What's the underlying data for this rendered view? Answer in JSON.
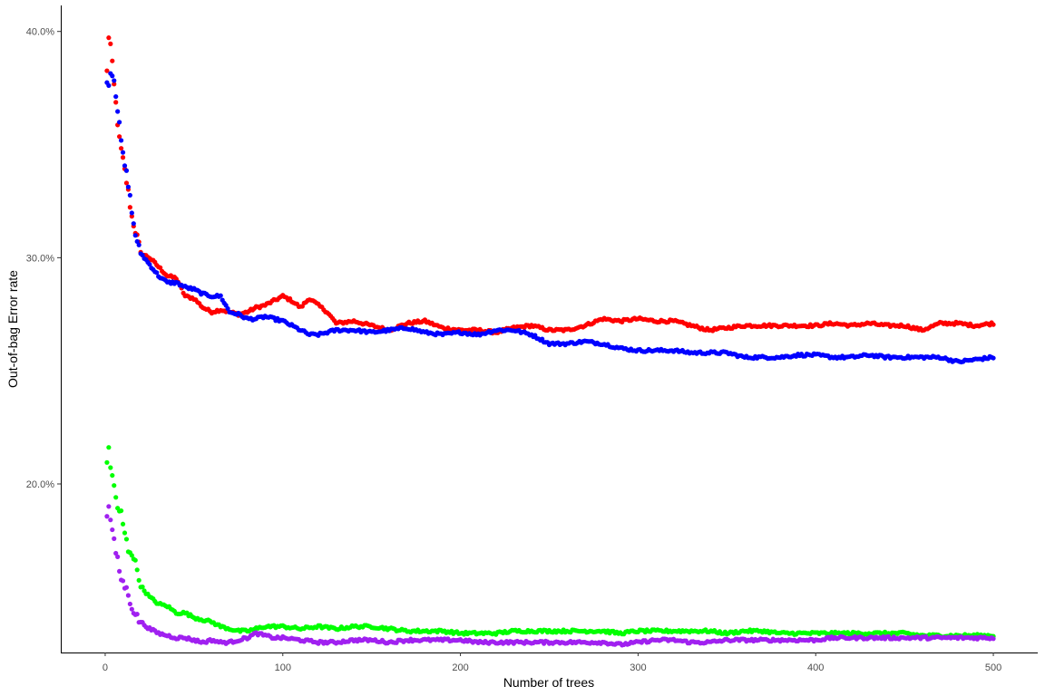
{
  "chart_data": {
    "type": "scatter",
    "title": "",
    "xlabel": "Number of trees",
    "ylabel": "Out-of-bag Error rate",
    "xlim": [
      -25,
      525
    ],
    "ylim": [
      0.1255,
      0.4115
    ],
    "x_ticks": [
      0,
      100,
      200,
      300,
      400,
      500
    ],
    "x_tick_labels": [
      "0",
      "100",
      "200",
      "300",
      "400",
      "500"
    ],
    "y_ticks": [
      0.2,
      0.3,
      0.4
    ],
    "y_tick_labels": [
      "20.0%",
      "30.0%",
      "40.0%"
    ],
    "grid": false,
    "legend": "none",
    "series": [
      {
        "color": "#ff0000",
        "x": [
          1,
          2,
          3,
          5,
          8,
          10,
          13,
          15,
          18,
          20,
          25,
          30,
          35,
          40,
          45,
          50,
          55,
          60,
          65,
          70,
          75,
          80,
          85,
          90,
          95,
          100,
          105,
          110,
          115,
          120,
          125,
          130,
          140,
          150,
          160,
          170,
          180,
          190,
          200,
          210,
          220,
          230,
          240,
          250,
          260,
          270,
          280,
          290,
          300,
          310,
          320,
          330,
          340,
          350,
          360,
          370,
          380,
          390,
          400,
          410,
          420,
          430,
          440,
          450,
          460,
          470,
          480,
          490,
          500
        ],
        "y": [
          0.382,
          0.398,
          0.394,
          0.376,
          0.352,
          0.343,
          0.329,
          0.318,
          0.309,
          0.302,
          0.3,
          0.296,
          0.292,
          0.291,
          0.283,
          0.282,
          0.278,
          0.276,
          0.277,
          0.276,
          0.275,
          0.276,
          0.278,
          0.279,
          0.281,
          0.283,
          0.281,
          0.278,
          0.282,
          0.279,
          0.276,
          0.271,
          0.272,
          0.27,
          0.268,
          0.271,
          0.272,
          0.269,
          0.268,
          0.268,
          0.267,
          0.269,
          0.27,
          0.268,
          0.268,
          0.27,
          0.273,
          0.272,
          0.273,
          0.272,
          0.272,
          0.27,
          0.268,
          0.269,
          0.27,
          0.27,
          0.27,
          0.27,
          0.27,
          0.271,
          0.27,
          0.271,
          0.27,
          0.27,
          0.268,
          0.271,
          0.271,
          0.27,
          0.271
        ]
      },
      {
        "color": "#0000ff",
        "x": [
          1,
          2,
          3,
          5,
          8,
          10,
          13,
          15,
          18,
          20,
          25,
          30,
          35,
          40,
          45,
          50,
          55,
          60,
          65,
          70,
          75,
          80,
          85,
          90,
          95,
          100,
          105,
          110,
          115,
          120,
          125,
          130,
          140,
          150,
          160,
          170,
          180,
          190,
          200,
          210,
          220,
          230,
          240,
          250,
          260,
          270,
          280,
          290,
          300,
          310,
          320,
          330,
          340,
          350,
          360,
          370,
          380,
          390,
          400,
          410,
          420,
          430,
          440,
          450,
          460,
          470,
          480,
          490,
          500
        ],
        "y": [
          0.377,
          0.378,
          0.382,
          0.38,
          0.358,
          0.345,
          0.333,
          0.32,
          0.306,
          0.302,
          0.297,
          0.292,
          0.289,
          0.289,
          0.287,
          0.286,
          0.284,
          0.283,
          0.283,
          0.276,
          0.275,
          0.273,
          0.273,
          0.274,
          0.273,
          0.272,
          0.27,
          0.268,
          0.266,
          0.266,
          0.267,
          0.268,
          0.268,
          0.267,
          0.268,
          0.269,
          0.267,
          0.266,
          0.267,
          0.266,
          0.268,
          0.268,
          0.266,
          0.262,
          0.262,
          0.263,
          0.262,
          0.26,
          0.259,
          0.259,
          0.259,
          0.258,
          0.258,
          0.258,
          0.256,
          0.256,
          0.256,
          0.257,
          0.257,
          0.256,
          0.256,
          0.257,
          0.256,
          0.256,
          0.256,
          0.256,
          0.254,
          0.255,
          0.256
        ]
      },
      {
        "color": "#00ff00",
        "x": [
          1,
          2,
          3,
          5,
          7,
          9,
          11,
          13,
          15,
          18,
          20,
          25,
          30,
          35,
          40,
          45,
          50,
          55,
          60,
          65,
          70,
          75,
          80,
          85,
          90,
          95,
          100,
          110,
          120,
          130,
          140,
          150,
          160,
          170,
          180,
          190,
          200,
          210,
          220,
          230,
          240,
          250,
          260,
          270,
          280,
          290,
          300,
          310,
          320,
          330,
          340,
          350,
          360,
          370,
          380,
          390,
          400,
          410,
          420,
          430,
          440,
          450,
          460,
          470,
          480,
          490,
          500
        ],
        "y": [
          0.21,
          0.215,
          0.207,
          0.2,
          0.188,
          0.187,
          0.178,
          0.171,
          0.17,
          0.162,
          0.155,
          0.15,
          0.147,
          0.146,
          0.143,
          0.143,
          0.141,
          0.14,
          0.139,
          0.137,
          0.136,
          0.135,
          0.135,
          0.136,
          0.137,
          0.137,
          0.137,
          0.136,
          0.137,
          0.136,
          0.137,
          0.137,
          0.136,
          0.135,
          0.135,
          0.135,
          0.134,
          0.134,
          0.134,
          0.135,
          0.135,
          0.135,
          0.135,
          0.135,
          0.135,
          0.134,
          0.135,
          0.135,
          0.135,
          0.135,
          0.135,
          0.134,
          0.135,
          0.135,
          0.134,
          0.134,
          0.134,
          0.134,
          0.134,
          0.134,
          0.134,
          0.134,
          0.133,
          0.133,
          0.133,
          0.133,
          0.133
        ]
      },
      {
        "color": "#a020f0",
        "x": [
          1,
          2,
          3,
          5,
          7,
          9,
          11,
          13,
          15,
          18,
          20,
          25,
          30,
          35,
          40,
          45,
          50,
          55,
          60,
          65,
          70,
          75,
          80,
          85,
          90,
          95,
          100,
          110,
          120,
          130,
          140,
          150,
          160,
          170,
          180,
          190,
          200,
          210,
          220,
          230,
          240,
          250,
          260,
          270,
          280,
          290,
          300,
          310,
          320,
          330,
          340,
          350,
          360,
          370,
          380,
          390,
          400,
          410,
          420,
          430,
          440,
          450,
          460,
          470,
          480,
          490,
          500
        ],
        "y": [
          0.187,
          0.189,
          0.185,
          0.174,
          0.166,
          0.158,
          0.155,
          0.151,
          0.146,
          0.141,
          0.139,
          0.136,
          0.134,
          0.133,
          0.132,
          0.132,
          0.131,
          0.13,
          0.131,
          0.13,
          0.13,
          0.131,
          0.132,
          0.134,
          0.133,
          0.132,
          0.132,
          0.131,
          0.13,
          0.13,
          0.131,
          0.131,
          0.13,
          0.131,
          0.131,
          0.131,
          0.131,
          0.13,
          0.13,
          0.13,
          0.13,
          0.13,
          0.13,
          0.13,
          0.13,
          0.129,
          0.13,
          0.131,
          0.131,
          0.13,
          0.13,
          0.131,
          0.131,
          0.131,
          0.131,
          0.131,
          0.131,
          0.132,
          0.132,
          0.132,
          0.132,
          0.132,
          0.132,
          0.132,
          0.132,
          0.132,
          0.132
        ]
      }
    ]
  }
}
